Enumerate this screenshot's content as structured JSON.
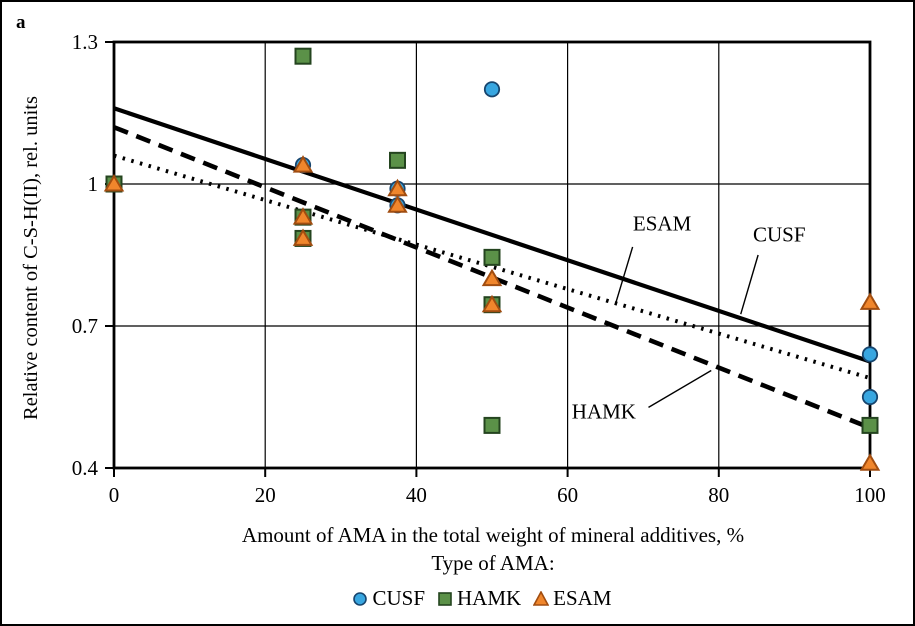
{
  "panel_label": "a",
  "axes": {
    "y_title": "Relative content of C-S-H(II), rel. units",
    "x_title": "Amount of AMA in the total weight of mineral additives, %",
    "y_tick_labels": [
      "1.3",
      "1",
      "0.7",
      "0.4"
    ],
    "y_tick_values": [
      1.3,
      1.0,
      0.7,
      0.4
    ],
    "x_tick_labels": [
      "0",
      "20",
      "40",
      "60",
      "80",
      "100"
    ],
    "x_tick_values": [
      0,
      20,
      40,
      60,
      80,
      100
    ],
    "x_range": [
      0,
      100
    ],
    "y_range": [
      0.4,
      1.3
    ]
  },
  "legend": {
    "intro": "Type of AMA:",
    "items": [
      {
        "label": "CUSF",
        "marker": "circle-icon",
        "fill": "#38a6e0",
        "stroke": "#17456e"
      },
      {
        "label": "HAMK",
        "marker": "square-icon",
        "fill": "#5b9148",
        "stroke": "#24441f"
      },
      {
        "label": "ESAM",
        "marker": "triangle-icon",
        "fill": "#f0862c",
        "stroke": "#a14d10"
      }
    ]
  },
  "chart_data": {
    "type": "scatter",
    "xlabel": "Amount of AMA in the total weight of mineral additives, %",
    "ylabel": "Relative content of C-S-H(II), rel. units",
    "xlim": [
      0,
      100
    ],
    "ylim": [
      0.4,
      1.3
    ],
    "gridlines": {
      "x": [
        20,
        40,
        60,
        80
      ],
      "y": [
        1.0,
        0.7
      ],
      "on": true
    },
    "series": [
      {
        "name": "HAMK",
        "marker": "square",
        "fill": "#5b9148",
        "stroke": "#24441f",
        "points": [
          [
            0,
            1.0
          ],
          [
            25,
            1.27
          ],
          [
            25,
            0.93
          ],
          [
            25,
            0.885
          ],
          [
            37.5,
            1.05
          ],
          [
            50,
            0.845
          ],
          [
            50,
            0.745
          ],
          [
            50,
            0.49
          ],
          [
            100,
            0.49
          ]
        ]
      },
      {
        "name": "CUSF",
        "marker": "circle",
        "fill": "#38a6e0",
        "stroke": "#17456e",
        "points": [
          [
            25,
            1.04
          ],
          [
            37.5,
            0.99
          ],
          [
            37.5,
            0.955
          ],
          [
            50,
            1.2
          ],
          [
            100,
            0.64
          ],
          [
            100,
            0.55
          ]
        ]
      },
      {
        "name": "ESAM",
        "marker": "triangle",
        "fill": "#f0862c",
        "stroke": "#a14d10",
        "points": [
          [
            0,
            1.0
          ],
          [
            25,
            1.04
          ],
          [
            25,
            0.93
          ],
          [
            25,
            0.885
          ],
          [
            37.5,
            0.99
          ],
          [
            37.5,
            0.955
          ],
          [
            50,
            0.8
          ],
          [
            50,
            0.745
          ],
          [
            100,
            0.75
          ],
          [
            100,
            0.41
          ]
        ]
      }
    ],
    "trend_lines": [
      {
        "name": "CUSF",
        "style": "solid",
        "points": [
          [
            0,
            1.16
          ],
          [
            100,
            0.625
          ]
        ]
      },
      {
        "name": "HAMK",
        "style": "dashed",
        "points": [
          [
            0,
            1.12
          ],
          [
            100,
            0.485
          ]
        ]
      },
      {
        "name": "ESAM",
        "style": "dotted",
        "points": [
          [
            0,
            1.06
          ],
          [
            100,
            0.59
          ]
        ]
      }
    ],
    "annotations": [
      {
        "label": "ESAM",
        "text_at": [
          72.5,
          0.915
        ],
        "leader": [
          [
            68.6,
            0.867
          ],
          [
            66.4,
            0.75
          ]
        ]
      },
      {
        "label": "CUSF",
        "text_at": [
          88.0,
          0.893
        ],
        "leader": [
          [
            85.2,
            0.85
          ],
          [
            82.9,
            0.725
          ]
        ]
      },
      {
        "label": "HAMK",
        "text_at": [
          64.8,
          0.518
        ],
        "leader": [
          [
            70.7,
            0.528
          ],
          [
            79.0,
            0.606
          ]
        ]
      }
    ]
  }
}
